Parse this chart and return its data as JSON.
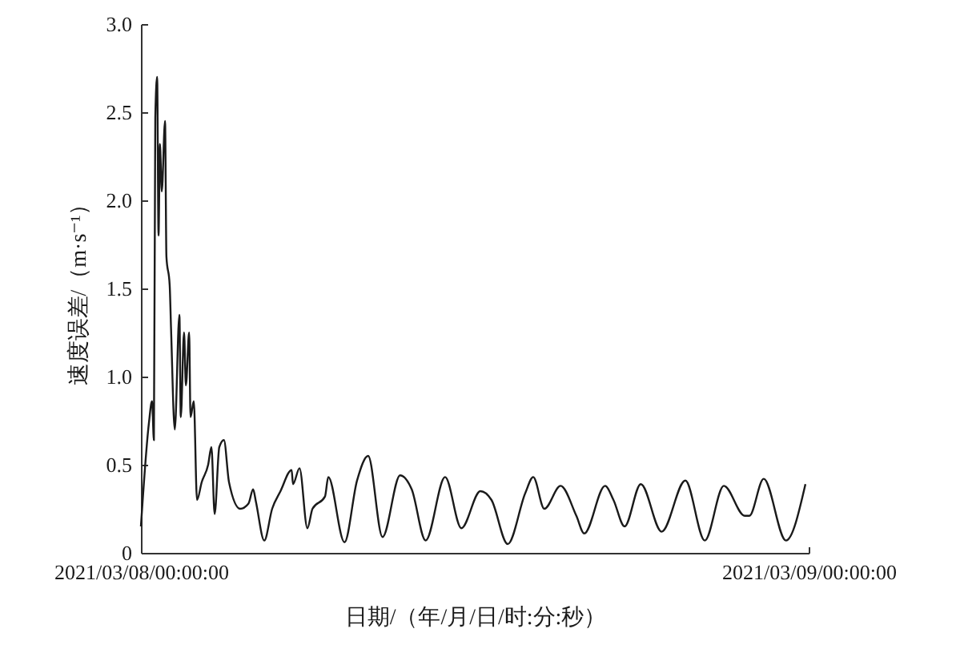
{
  "chart_data": {
    "type": "line",
    "xlabel": "日期/（年/月/日/时:分:秒）",
    "ylabel": "速度误差/（m·s⁻¹）",
    "xlim": [
      "2021-03-08T00:00",
      "2021-03-09T00:00"
    ],
    "xticks": [
      {
        "value": "2021-03-08T00:00",
        "label": "2021/03/08/00:00:00"
      },
      {
        "value": "2021-03-09T00:00",
        "label": "2021/03/09/00:00:00"
      }
    ],
    "ylim": [
      0,
      3
    ],
    "yticks": [
      0,
      {
        "value": 0.5,
        "label": "0.5"
      },
      {
        "value": 1,
        "label": "1.0"
      },
      {
        "value": 1.5,
        "label": "1.5"
      },
      {
        "value": 2,
        "label": "2.0"
      },
      {
        "value": 2.5,
        "label": "2.5"
      },
      {
        "value": 3,
        "label": "3.0"
      }
    ],
    "grid": false,
    "series": [
      {
        "color": "#1a1a1a",
        "x": [
          "2021-03-08T00:00",
          "2021-03-08T00:17",
          "2021-03-08T00:24",
          "2021-03-08T00:28",
          "2021-03-08T00:31",
          "2021-03-08T00:35",
          "2021-03-08T00:38",
          "2021-03-08T00:41",
          "2021-03-08T00:45",
          "2021-03-08T00:52",
          "2021-03-08T00:55",
          "2021-03-08T01:02",
          "2021-03-08T01:05",
          "2021-03-08T01:13",
          "2021-03-08T01:23",
          "2021-03-08T01:26",
          "2021-03-08T01:33",
          "2021-03-08T01:37",
          "2021-03-08T01:44",
          "2021-03-08T01:47",
          "2021-03-08T01:54",
          "2021-03-08T02:01",
          "2021-03-08T02:11",
          "2021-03-08T02:25",
          "2021-03-08T02:32",
          "2021-03-08T02:39",
          "2021-03-08T02:49",
          "2021-03-08T02:59",
          "2021-03-08T03:10",
          "2021-03-08T03:34",
          "2021-03-08T03:52",
          "2021-03-08T04:02",
          "2021-03-08T04:08",
          "2021-03-08T04:26",
          "2021-03-08T04:43",
          "2021-03-08T05:01",
          "2021-03-08T05:25",
          "2021-03-08T05:28",
          "2021-03-08T05:42",
          "2021-03-08T05:59",
          "2021-03-08T06:10",
          "2021-03-08T06:37",
          "2021-03-08T06:44",
          "2021-03-08T07:19",
          "2021-03-08T07:46",
          "2021-03-08T08:10",
          "2021-03-08T08:41",
          "2021-03-08T09:19",
          "2021-03-08T09:44",
          "2021-03-08T10:14",
          "2021-03-08T10:56",
          "2021-03-08T11:31",
          "2021-03-08T12:12",
          "2021-03-08T12:36",
          "2021-03-08T13:11",
          "2021-03-08T13:49",
          "2021-03-08T14:06",
          "2021-03-08T14:30",
          "2021-03-08T15:05",
          "2021-03-08T15:39",
          "2021-03-08T15:56",
          "2021-03-08T16:41",
          "2021-03-08T16:59",
          "2021-03-08T17:23",
          "2021-03-08T17:58",
          "2021-03-08T18:43",
          "2021-03-08T19:34",
          "2021-03-08T20:16",
          "2021-03-08T20:57",
          "2021-03-08T21:42",
          "2021-03-08T21:52",
          "2021-03-08T22:23",
          "2021-03-08T23:11",
          "2021-03-08T23:53"
        ],
        "values": [
          0.15,
          0.73,
          0.86,
          0.64,
          2.47,
          2.7,
          1.8,
          2.32,
          2.05,
          2.45,
          1.68,
          1.52,
          1.27,
          0.7,
          1.35,
          0.77,
          1.25,
          0.95,
          1.25,
          0.77,
          0.86,
          0.3,
          0.4,
          0.5,
          0.6,
          0.22,
          0.6,
          0.64,
          0.4,
          0.25,
          0.28,
          0.36,
          0.29,
          0.07,
          0.25,
          0.35,
          0.47,
          0.39,
          0.48,
          0.14,
          0.25,
          0.32,
          0.43,
          0.06,
          0.41,
          0.55,
          0.09,
          0.44,
          0.36,
          0.07,
          0.43,
          0.14,
          0.35,
          0.3,
          0.05,
          0.34,
          0.43,
          0.25,
          0.38,
          0.21,
          0.11,
          0.38,
          0.3,
          0.15,
          0.39,
          0.12,
          0.41,
          0.07,
          0.38,
          0.21,
          0.21,
          0.42,
          0.07,
          0.39
        ]
      }
    ]
  }
}
